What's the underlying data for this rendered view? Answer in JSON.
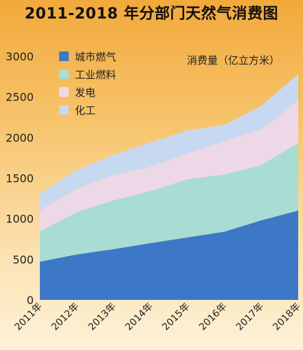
{
  "chart_data": {
    "type": "area",
    "stacked": true,
    "title": "2011-2018 年分部门天然气消费图",
    "unit_label": "消费量（亿立方米）",
    "categories": [
      "2011年",
      "2012年",
      "2013年",
      "2014年",
      "2015年",
      "2016年",
      "2017年",
      "2018年"
    ],
    "ylim": [
      0,
      3000
    ],
    "yticks": [
      0,
      500,
      1000,
      1500,
      2000,
      2500,
      3000
    ],
    "grid": false,
    "legend_position": "top-left",
    "series": [
      {
        "name": "城市燃气",
        "color": "#3d78c6",
        "values": [
          470,
          560,
          625,
          700,
          770,
          840,
          980,
          1100
        ]
      },
      {
        "name": "工业燃料",
        "color": "#a9dcd3",
        "values": [
          370,
          520,
          600,
          640,
          715,
          705,
          680,
          830
        ]
      },
      {
        "name": "发电",
        "color": "#ecd8e6",
        "values": [
          260,
          290,
          310,
          300,
          320,
          410,
          440,
          530
        ]
      },
      {
        "name": "化工",
        "color": "#c7d9f0",
        "values": [
          210,
          230,
          250,
          300,
          280,
          200,
          290,
          320
        ]
      }
    ]
  }
}
